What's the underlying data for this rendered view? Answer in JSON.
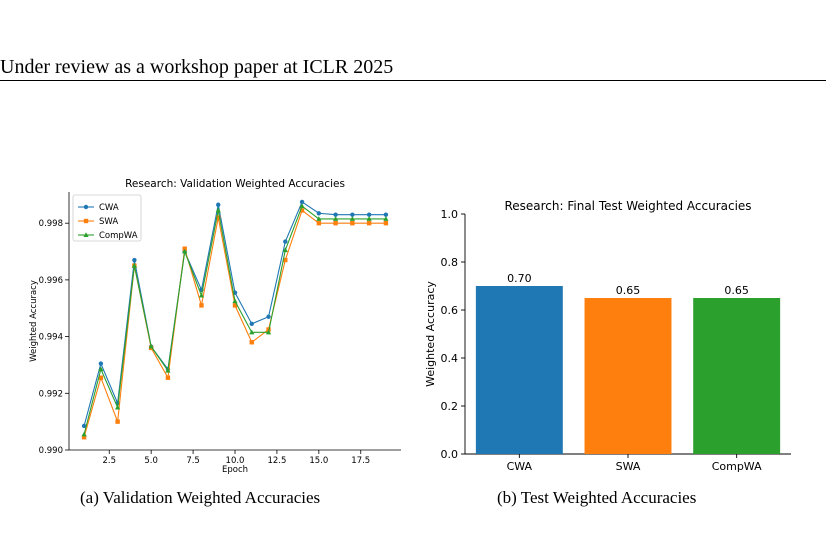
{
  "header": {
    "text": "Under review as a workshop paper at ICLR 2025"
  },
  "figures": {
    "a": {
      "caption": "(a)  Validation Weighted Accuracies"
    },
    "b": {
      "caption": "(b)  Test Weighted Accuracies"
    }
  },
  "chart_data": [
    {
      "type": "line",
      "title": "Research: Validation Weighted Accuracies",
      "xlabel": "Epoch",
      "ylabel": "Weighted Accuracy",
      "xlim": [
        0.1,
        19.9
      ],
      "ylim": [
        0.99,
        0.9991
      ],
      "xticks": [
        2.5,
        5.0,
        7.5,
        10.0,
        12.5,
        15.0,
        17.5
      ],
      "xtick_labels": [
        "2.5",
        "5.0",
        "7.5",
        "10.0",
        "12.5",
        "15.0",
        "17.5"
      ],
      "yticks": [
        0.99,
        0.992,
        0.994,
        0.996,
        0.998
      ],
      "ytick_labels": [
        "0.990",
        "0.992",
        "0.994",
        "0.996",
        "0.998"
      ],
      "grid": false,
      "legend": "top-left",
      "x": [
        1,
        2,
        3,
        4,
        5,
        6,
        7,
        8,
        9,
        10,
        11,
        12,
        13,
        14,
        15,
        16,
        17,
        18,
        19
      ],
      "series": [
        {
          "name": "CWA",
          "color": "#1f77b4",
          "marker": "circle",
          "values": [
            0.99085,
            0.99305,
            0.99165,
            0.9967,
            0.99365,
            0.99285,
            0.997,
            0.99565,
            0.99865,
            0.99555,
            0.99445,
            0.9947,
            0.99735,
            0.99875,
            0.99835,
            0.9983,
            0.9983,
            0.9983,
            0.9983
          ]
        },
        {
          "name": "SWA",
          "color": "#ff7f0e",
          "marker": "square",
          "values": [
            0.99045,
            0.99255,
            0.991,
            0.9965,
            0.9936,
            0.99255,
            0.9971,
            0.9951,
            0.9982,
            0.9951,
            0.9938,
            0.99425,
            0.9967,
            0.99845,
            0.998,
            0.998,
            0.998,
            0.998,
            0.998
          ]
        },
        {
          "name": "CompWA",
          "color": "#2ca02c",
          "marker": "triangle",
          "values": [
            0.99055,
            0.99285,
            0.9915,
            0.9965,
            0.99365,
            0.9928,
            0.997,
            0.99545,
            0.99845,
            0.99525,
            0.99415,
            0.99415,
            0.99705,
            0.9986,
            0.99815,
            0.99815,
            0.99815,
            0.99815,
            0.99815
          ]
        }
      ]
    },
    {
      "type": "bar",
      "title": "Research: Final Test Weighted Accuracies",
      "xlabel": "",
      "ylabel": "Weighted Accuracy",
      "ylim": [
        0,
        1.0
      ],
      "yticks": [
        0.0,
        0.2,
        0.4,
        0.6,
        0.8,
        1.0
      ],
      "ytick_labels": [
        "0.0",
        "0.2",
        "0.4",
        "0.6",
        "0.8",
        "1.0"
      ],
      "categories": [
        "CWA",
        "SWA",
        "CompWA"
      ],
      "values": [
        0.7,
        0.65,
        0.65
      ],
      "value_labels": [
        "0.70",
        "0.65",
        "0.65"
      ],
      "colors": [
        "#1f77b4",
        "#ff7f0e",
        "#2ca02c"
      ],
      "grid": false
    }
  ]
}
